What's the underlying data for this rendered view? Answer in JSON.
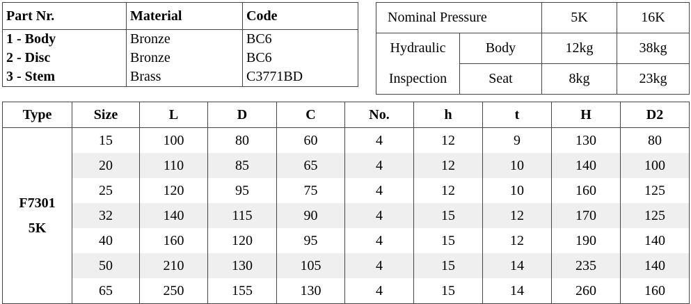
{
  "parts": {
    "headers": [
      "Part Nr.",
      "Material",
      "Code"
    ],
    "rows": [
      [
        "1 - Body",
        "Bronze",
        "BC6"
      ],
      [
        "2 - Disc",
        "Bronze",
        "BC6"
      ],
      [
        "3 - Stem",
        "Brass",
        "C3771BD"
      ]
    ]
  },
  "pressure": {
    "header": [
      "Nominal Pressure",
      "5K",
      "16K"
    ],
    "test_label": [
      "Hydraulic",
      "Inspection"
    ],
    "rows": [
      [
        "Body",
        "12kg",
        "38kg"
      ],
      [
        "Seat",
        "8kg",
        "23kg"
      ]
    ]
  },
  "dimensions": {
    "headers": [
      "Type",
      "Size",
      "L",
      "D",
      "C",
      "No.",
      "h",
      "t",
      "H",
      "D2"
    ],
    "type_label": [
      "F7301",
      "5K"
    ],
    "rows": [
      [
        15,
        100,
        80,
        60,
        4,
        12,
        9,
        130,
        80
      ],
      [
        20,
        110,
        85,
        65,
        4,
        12,
        10,
        140,
        100
      ],
      [
        25,
        120,
        95,
        75,
        4,
        12,
        10,
        160,
        125
      ],
      [
        32,
        140,
        115,
        90,
        4,
        15,
        12,
        170,
        125
      ],
      [
        40,
        160,
        120,
        95,
        4,
        15,
        12,
        190,
        140
      ],
      [
        50,
        210,
        130,
        105,
        4,
        15,
        14,
        235,
        140
      ],
      [
        65,
        250,
        155,
        130,
        4,
        15,
        14,
        260,
        160
      ]
    ]
  }
}
